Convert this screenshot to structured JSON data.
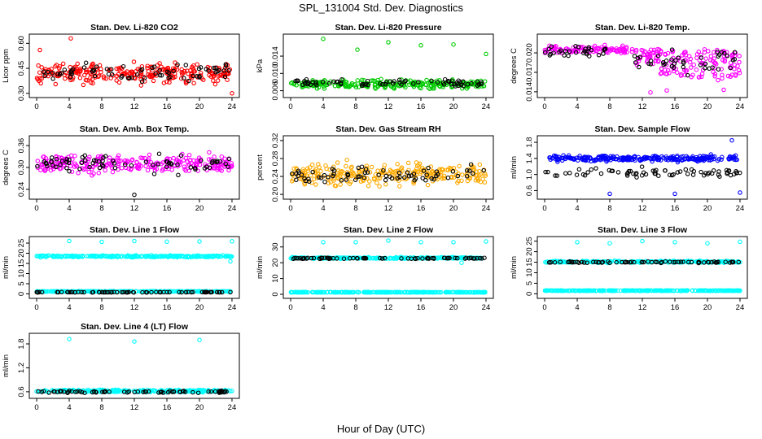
{
  "figure": {
    "title": "SPL_131004  Std. Dev. Diagnostics",
    "xlabel": "Hour of Day (UTC)"
  },
  "chart_data": [
    {
      "type": "scatter",
      "title": "Stan. Dev. Li-820 CO2",
      "ylabel": "Licor ppm",
      "xlim": [
        0,
        24
      ],
      "ylim": [
        0.29,
        0.64
      ],
      "xticks": [
        "0",
        "4",
        "8",
        "12",
        "16",
        "20",
        "24"
      ],
      "yticks": [
        "0.30",
        "0.45",
        "0.60"
      ],
      "series": [
        {
          "color": "#ff0000",
          "baseline": 0.42,
          "spread": 0.05,
          "outliers": [
            [
              4.2,
              0.63
            ],
            [
              24,
              0.3
            ],
            [
              0.4,
              0.56
            ]
          ]
        },
        {
          "color": "#000000",
          "baseline": 0.43,
          "spread": 0.04,
          "outliers": []
        }
      ]
    },
    {
      "type": "scatter",
      "title": "Stan. Dev. Li-820 Pressure",
      "ylabel": "kPa",
      "xlim": [
        0,
        24
      ],
      "ylim": [
        0.005,
        0.0185
      ],
      "xticks": [
        "0",
        "4",
        "8",
        "12",
        "16",
        "20",
        "24"
      ],
      "yticks": [
        "0.006",
        "0.010",
        "0.014"
      ],
      "series": [
        {
          "color": "#00cc00",
          "baseline": 0.0075,
          "spread": 0.0008,
          "outliers": [
            [
              4,
              0.018
            ],
            [
              8.2,
              0.0155
            ],
            [
              12,
              0.0172
            ],
            [
              16,
              0.0165
            ],
            [
              20,
              0.0167
            ],
            [
              24,
              0.0145
            ]
          ]
        },
        {
          "color": "#000000",
          "baseline": 0.0077,
          "spread": 0.0007,
          "outliers": []
        }
      ]
    },
    {
      "type": "scatter",
      "title": "Stan. Dev. Li-820 Temp.",
      "ylabel": "degrees C",
      "xlim": [
        0,
        24
      ],
      "ylim": [
        0.0135,
        0.0225
      ],
      "xticks": [
        "0",
        "4",
        "8",
        "12",
        "16",
        "20",
        "24"
      ],
      "yticks": [
        "0.014",
        "0.017",
        "0.020"
      ],
      "series": [
        {
          "color": "#ff00ff",
          "baseline": 0.0205,
          "spread": 0.0005,
          "outliers": [
            [
              13,
              0.0139
            ],
            [
              15,
              0.0142
            ],
            [
              22,
              0.0143
            ]
          ]
        },
        {
          "color": "#000000",
          "baseline": 0.0203,
          "spread": 0.0006,
          "outliers": []
        }
      ]
    },
    {
      "type": "scatter",
      "title": "Stan. Dev. Amb. Box Temp.",
      "ylabel": "degrees C",
      "xlim": [
        0,
        24
      ],
      "ylim": [
        0.22,
        0.38
      ],
      "xticks": [
        "0",
        "4",
        "8",
        "12",
        "16",
        "20",
        "24"
      ],
      "yticks": [
        "0.24",
        "0.30",
        "0.36"
      ],
      "series": [
        {
          "color": "#ff00ff",
          "baseline": 0.31,
          "spread": 0.022,
          "outliers": []
        },
        {
          "color": "#000000",
          "baseline": 0.31,
          "spread": 0.02,
          "outliers": [
            [
              12,
              0.225
            ]
          ]
        }
      ]
    },
    {
      "type": "scatter",
      "title": "Stan. Dev. Gas Stream RH",
      "ylabel": "percent",
      "xlim": [
        0,
        24
      ],
      "ylim": [
        0.195,
        0.325
      ],
      "xticks": [
        "0",
        "4",
        "8",
        "12",
        "16",
        "20",
        "24"
      ],
      "yticks": [
        "0.20",
        "0.24",
        "0.28",
        "0.32"
      ],
      "series": [
        {
          "color": "#ffaa00",
          "baseline": 0.245,
          "spread": 0.02,
          "outliers": []
        },
        {
          "color": "#000000",
          "baseline": 0.245,
          "spread": 0.015,
          "outliers": []
        }
      ]
    },
    {
      "type": "scatter",
      "title": "Stan. Dev. Sample Flow",
      "ylabel": "ml/min",
      "xlim": [
        0,
        24
      ],
      "ylim": [
        0.45,
        1.9
      ],
      "xticks": [
        "0",
        "4",
        "8",
        "12",
        "16",
        "20",
        "24"
      ],
      "yticks": [
        "0.6",
        "1.0",
        "1.4",
        "1.8"
      ],
      "series": [
        {
          "color": "#0000ff",
          "baseline": 1.4,
          "spread": 0.06,
          "outliers": [
            [
              8,
              0.52
            ],
            [
              16,
              0.52
            ],
            [
              24,
              0.55
            ],
            [
              23,
              1.85
            ]
          ]
        },
        {
          "color": "#000000",
          "baseline": 1.05,
          "spread": 0.1,
          "outliers": []
        }
      ]
    },
    {
      "type": "scatter",
      "title": "Stan. Dev. Line 1 Flow",
      "ylabel": "ml/min",
      "xlim": [
        0,
        24
      ],
      "ylim": [
        -1,
        27
      ],
      "xticks": [
        "0",
        "4",
        "8",
        "12",
        "16",
        "20",
        "24"
      ],
      "yticks": [
        "0",
        "5",
        "10",
        "15",
        "20",
        "25"
      ],
      "series": [
        {
          "color": "#00ffff",
          "baseline": 18.5,
          "spread": 0.35,
          "outliers": [
            [
              4,
              26
            ],
            [
              8,
              25.6
            ],
            [
              12,
              26
            ],
            [
              16,
              25.7
            ],
            [
              20,
              25.8
            ],
            [
              24,
              25.9
            ],
            [
              23.8,
              16
            ]
          ]
        },
        {
          "color": "#00ffff",
          "baseline": 1.2,
          "spread": 0.1,
          "outliers": []
        },
        {
          "color": "#000000",
          "baseline": 0.8,
          "spread": 0.08,
          "outliers": []
        }
      ]
    },
    {
      "type": "scatter",
      "title": "Stan. Dev. Line 2 Flow",
      "ylabel": "ml/min",
      "xlim": [
        0,
        24
      ],
      "ylim": [
        -1,
        35
      ],
      "xticks": [
        "0",
        "4",
        "8",
        "12",
        "16",
        "20",
        "24"
      ],
      "yticks": [
        "0",
        "10",
        "20",
        "30"
      ],
      "series": [
        {
          "color": "#00ffff",
          "baseline": 23,
          "spread": 0.4,
          "outliers": [
            [
              4,
              33
            ],
            [
              8,
              33
            ],
            [
              12,
              34
            ],
            [
              16,
              33
            ],
            [
              20,
              33
            ],
            [
              24,
              33.5
            ],
            [
              21,
              20
            ]
          ]
        },
        {
          "color": "#000000",
          "baseline": 22.8,
          "spread": 0.3,
          "outliers": []
        },
        {
          "color": "#00ffff",
          "baseline": 1.3,
          "spread": 0.1,
          "outliers": []
        }
      ]
    },
    {
      "type": "scatter",
      "title": "Stan. Dev. Line 3 Flow",
      "ylabel": "ml/min",
      "xlim": [
        0,
        24
      ],
      "ylim": [
        -1,
        26
      ],
      "xticks": [
        "0",
        "4",
        "8",
        "12",
        "16",
        "20",
        "24"
      ],
      "yticks": [
        "0",
        "5",
        "10",
        "15",
        "20",
        "25"
      ],
      "series": [
        {
          "color": "#00ffff",
          "baseline": 15.2,
          "spread": 0.35,
          "outliers": [
            [
              4,
              24.5
            ],
            [
              8,
              24
            ],
            [
              12,
              25
            ],
            [
              16,
              24.5
            ],
            [
              20,
              24
            ],
            [
              24,
              24.7
            ]
          ]
        },
        {
          "color": "#000000",
          "baseline": 15,
          "spread": 0.25,
          "outliers": []
        },
        {
          "color": "#00ffff",
          "baseline": 1.5,
          "spread": 0.1,
          "outliers": []
        }
      ]
    },
    {
      "type": "scatter",
      "title": "Stan. Dev. Line 4 (LT) Flow",
      "ylabel": "ml/min",
      "xlim": [
        0,
        24
      ],
      "ylim": [
        0.5,
        2.0
      ],
      "xticks": [
        "0",
        "4",
        "8",
        "12",
        "16",
        "20",
        "24"
      ],
      "yticks": [
        "0.6",
        "1.2",
        "1.8"
      ],
      "series": [
        {
          "color": "#00ffff",
          "baseline": 0.62,
          "spread": 0.025,
          "outliers": [
            [
              4,
              1.92
            ],
            [
              12,
              1.86
            ],
            [
              20,
              1.9
            ]
          ]
        },
        {
          "color": "#000000",
          "baseline": 0.6,
          "spread": 0.02,
          "outliers": []
        }
      ]
    }
  ]
}
